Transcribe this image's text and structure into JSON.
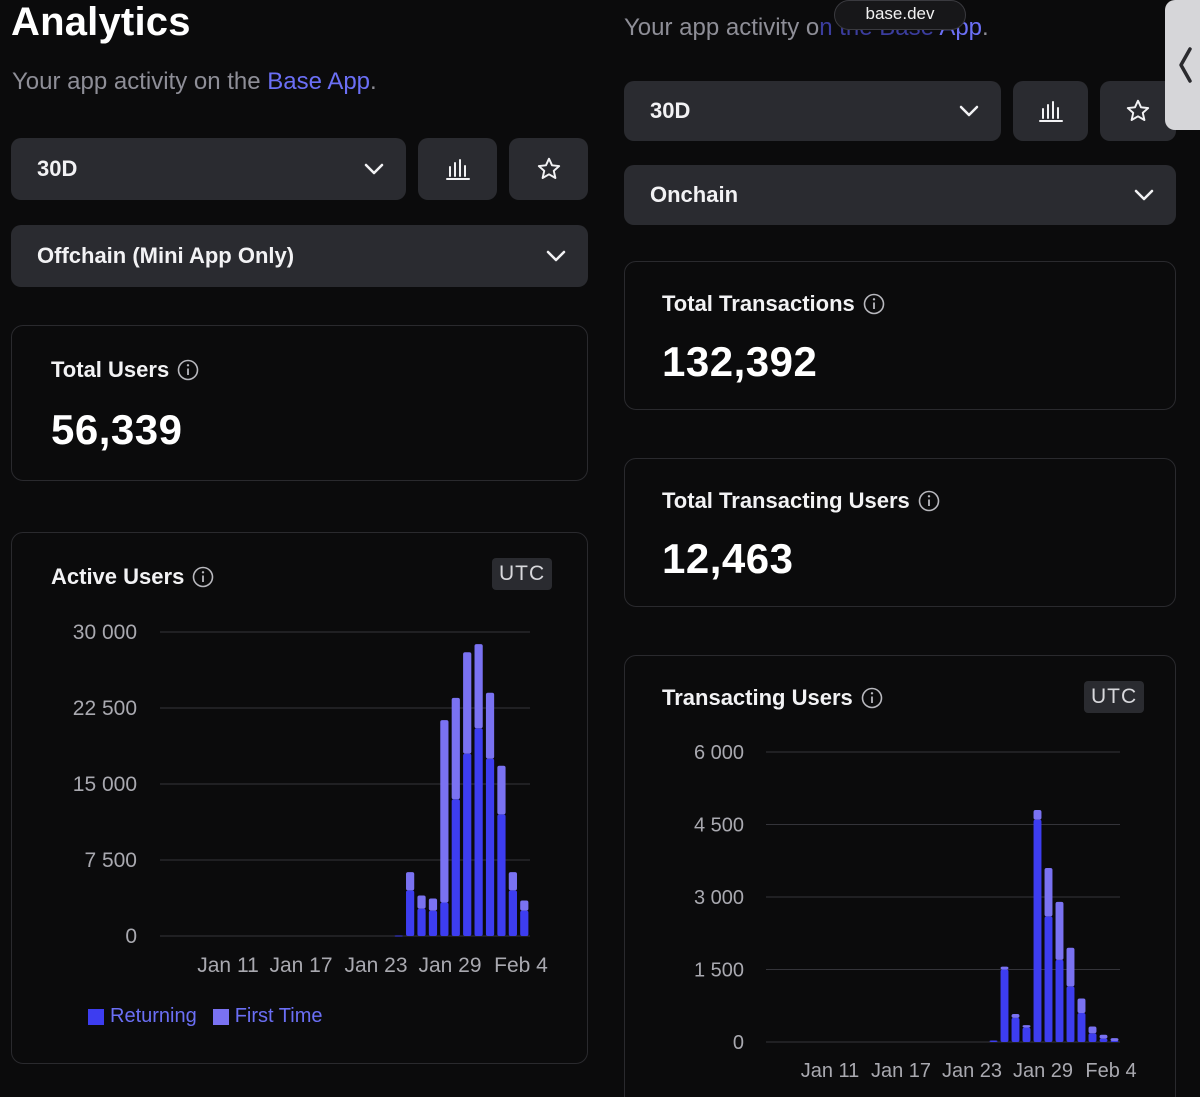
{
  "header": {
    "title": "Analytics",
    "subtitle_prefix": "Your app activity on the ",
    "subtitle_link": "Base App",
    "subtitle_suffix": "."
  },
  "right_header": {
    "subtitle_prefix": "Your app activity o",
    "subtitle_masked": "n the Base",
    "subtitle_link": " App",
    "subtitle_suffix": "."
  },
  "browser": {
    "url_pill": "base.dev",
    "side_tab_icon": "chevron-left-icon"
  },
  "left": {
    "range_select": "30D",
    "metric_select": "Offchain (Mini App Only)",
    "total_users": {
      "title": "Total Users",
      "value": "56,339"
    },
    "active_users": {
      "title": "Active Users",
      "timezone": "UTC"
    },
    "legend": {
      "returning": "Returning",
      "first_time": "First Time"
    }
  },
  "right": {
    "range_select": "30D",
    "metric_select": "Onchain",
    "total_transactions": {
      "title": "Total Transactions",
      "value": "132,392"
    },
    "total_transacting_users": {
      "title": "Total Transacting Users",
      "value": "12,463"
    },
    "transacting_users": {
      "title": "Transacting Users",
      "timezone": "UTC"
    }
  },
  "colors": {
    "returning": "#3d3df0",
    "first_time": "#7a72f2",
    "link": "#6b6ff5"
  },
  "chart_data": [
    {
      "type": "bar",
      "title": "Active Users",
      "stacked": true,
      "ylim": [
        0,
        30000
      ],
      "yticks": [
        0,
        7500,
        15000,
        22500,
        30000
      ],
      "ytick_labels": [
        "0",
        "7 500",
        "15 000",
        "22 500",
        "30 000"
      ],
      "xtick_labels": [
        "Jan 11",
        "Jan 17",
        "Jan 23",
        "Jan 29",
        "Feb 4"
      ],
      "xtick_index": [
        4,
        10,
        16,
        22,
        28
      ],
      "series": [
        {
          "name": "Returning",
          "values": [
            0,
            0,
            0,
            0,
            0,
            0,
            0,
            0,
            0,
            0,
            0,
            0,
            0,
            0,
            0,
            0,
            0,
            0,
            0,
            50,
            4500,
            2700,
            2500,
            3300,
            13500,
            18000,
            20500,
            17500,
            12000,
            4500,
            2500
          ]
        },
        {
          "name": "First Time",
          "values": [
            0,
            0,
            0,
            0,
            0,
            0,
            0,
            0,
            0,
            0,
            0,
            0,
            0,
            0,
            0,
            0,
            0,
            0,
            0,
            0,
            1800,
            1300,
            1200,
            18000,
            10000,
            10000,
            8300,
            6500,
            4800,
            1800,
            1000
          ]
        }
      ]
    },
    {
      "type": "bar",
      "title": "Transacting Users",
      "stacked": true,
      "ylim": [
        0,
        6000
      ],
      "yticks": [
        0,
        1500,
        3000,
        4500,
        6000
      ],
      "ytick_labels": [
        "0",
        "1 500",
        "3 000",
        "4 500",
        "6 000"
      ],
      "xtick_labels": [
        "Jan 11",
        "Jan 17",
        "Jan 23",
        "Jan 29",
        "Feb 4"
      ],
      "xtick_index": [
        4,
        10,
        16,
        22,
        28
      ],
      "series": [
        {
          "name": "Returning",
          "values": [
            0,
            0,
            0,
            0,
            0,
            0,
            0,
            0,
            0,
            0,
            0,
            0,
            0,
            0,
            0,
            0,
            0,
            0,
            0,
            30,
            1500,
            500,
            300,
            4600,
            2600,
            1700,
            1150,
            600,
            180,
            70,
            20
          ]
        },
        {
          "name": "First Time",
          "values": [
            0,
            0,
            0,
            0,
            0,
            0,
            0,
            0,
            0,
            0,
            0,
            0,
            0,
            0,
            0,
            0,
            0,
            0,
            0,
            0,
            60,
            80,
            50,
            200,
            1000,
            1200,
            800,
            300,
            140,
            80,
            60
          ]
        }
      ]
    }
  ]
}
